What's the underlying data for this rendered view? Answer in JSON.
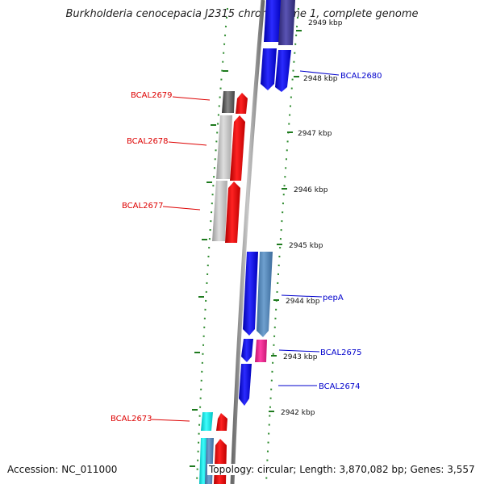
{
  "title": "Burkholderia cenocepacia J2315 chromosome 1, complete genome",
  "footer": {
    "accession": "Accession: NC_011000",
    "summary": "Topology: circular; Length: 3,870,082 bp; Genes: 3,557"
  },
  "colors": {
    "backbone": "#808080",
    "ticks": "#1e7a1e",
    "dots": "#2e8b2e",
    "forward_label": "#0000cc",
    "reverse_label": "#dd0000"
  },
  "scale_ticks": [
    "2949 kbp",
    "2948 kbp",
    "2947 kbp",
    "2946 kbp",
    "2945 kbp",
    "2944 kbp",
    "2943 kbp",
    "2942 kbp"
  ],
  "labels_right": [
    {
      "text": "BCAL2680",
      "color": "#0000cc"
    },
    {
      "text": "pepA",
      "color": "#0000cc"
    },
    {
      "text": "BCAL2675",
      "color": "#0000cc"
    },
    {
      "text": "BCAL2674",
      "color": "#0000cc"
    }
  ],
  "labels_left": [
    {
      "text": "BCAL2679",
      "color": "#dd0000"
    },
    {
      "text": "BCAL2678",
      "color": "#dd0000"
    },
    {
      "text": "BCAL2677",
      "color": "#dd0000"
    },
    {
      "text": "BCAL2673",
      "color": "#dd0000"
    }
  ]
}
